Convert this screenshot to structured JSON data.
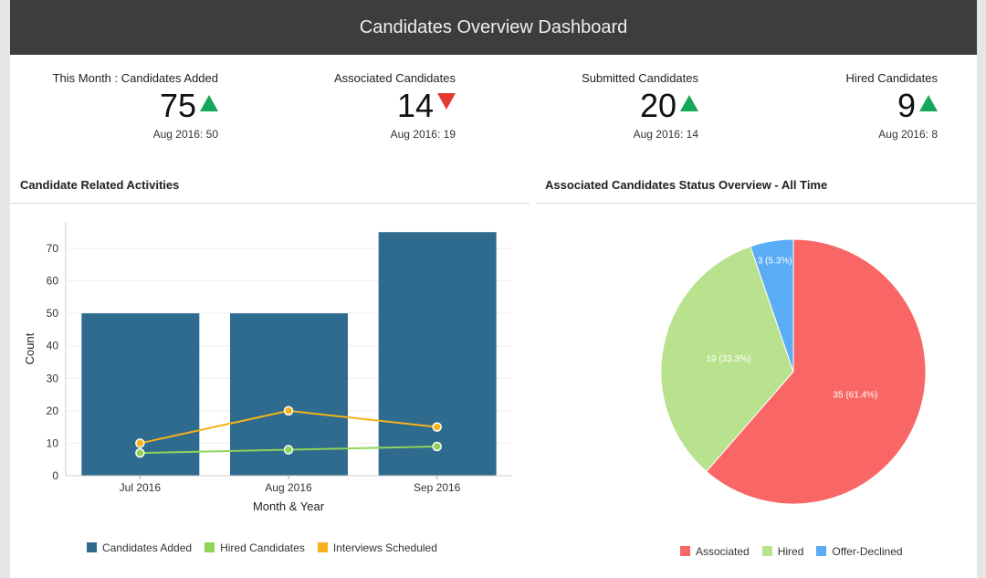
{
  "header": {
    "title": "Candidates Overview Dashboard"
  },
  "kpis": [
    {
      "label": "This Month : Candidates Added",
      "value": "75",
      "trend": "up",
      "comparison": "Aug 2016: 50"
    },
    {
      "label": "Associated Candidates",
      "value": "14",
      "trend": "down",
      "comparison": "Aug 2016: 19"
    },
    {
      "label": "Submitted Candidates",
      "value": "20",
      "trend": "up",
      "comparison": "Aug 2016: 14"
    },
    {
      "label": "Hired Candidates",
      "value": "9",
      "trend": "up",
      "comparison": "Aug 2016: 8"
    }
  ],
  "colors": {
    "up": "#16a85a",
    "down": "#e53935"
  },
  "chart_data": [
    {
      "type": "bar",
      "title": "Candidate Related Activities",
      "xlabel": "Month & Year",
      "ylabel": "Count",
      "categories": [
        "Jul 2016",
        "Aug 2016",
        "Sep 2016"
      ],
      "ylim": [
        0,
        75
      ],
      "yticks": [
        0,
        10,
        20,
        30,
        40,
        50,
        60,
        70
      ],
      "grid": true,
      "legend": "bottom",
      "series": [
        {
          "name": "Candidates Added",
          "kind": "bar",
          "color": "#2e6b8f",
          "values": [
            50,
            50,
            75
          ]
        },
        {
          "name": "Hired Candidates",
          "kind": "line",
          "color": "#8fd35a",
          "values": [
            7,
            8,
            9
          ]
        },
        {
          "name": "Interviews Scheduled",
          "kind": "line",
          "color": "#f5b21b",
          "values": [
            10,
            20,
            15
          ]
        }
      ]
    },
    {
      "type": "pie",
      "title": "Associated Candidates Status Overview - All Time",
      "legend": "bottom",
      "slices": [
        {
          "name": "Associated",
          "value": 35,
          "label": "35 (61.4%)",
          "color": "#f96666"
        },
        {
          "name": "Hired",
          "value": 19,
          "label": "19 (33.3%)",
          "color": "#b9e28e"
        },
        {
          "name": "Offer-Declined",
          "value": 3,
          "label": "3 (5.3%)",
          "color": "#5aacf5"
        }
      ]
    }
  ]
}
